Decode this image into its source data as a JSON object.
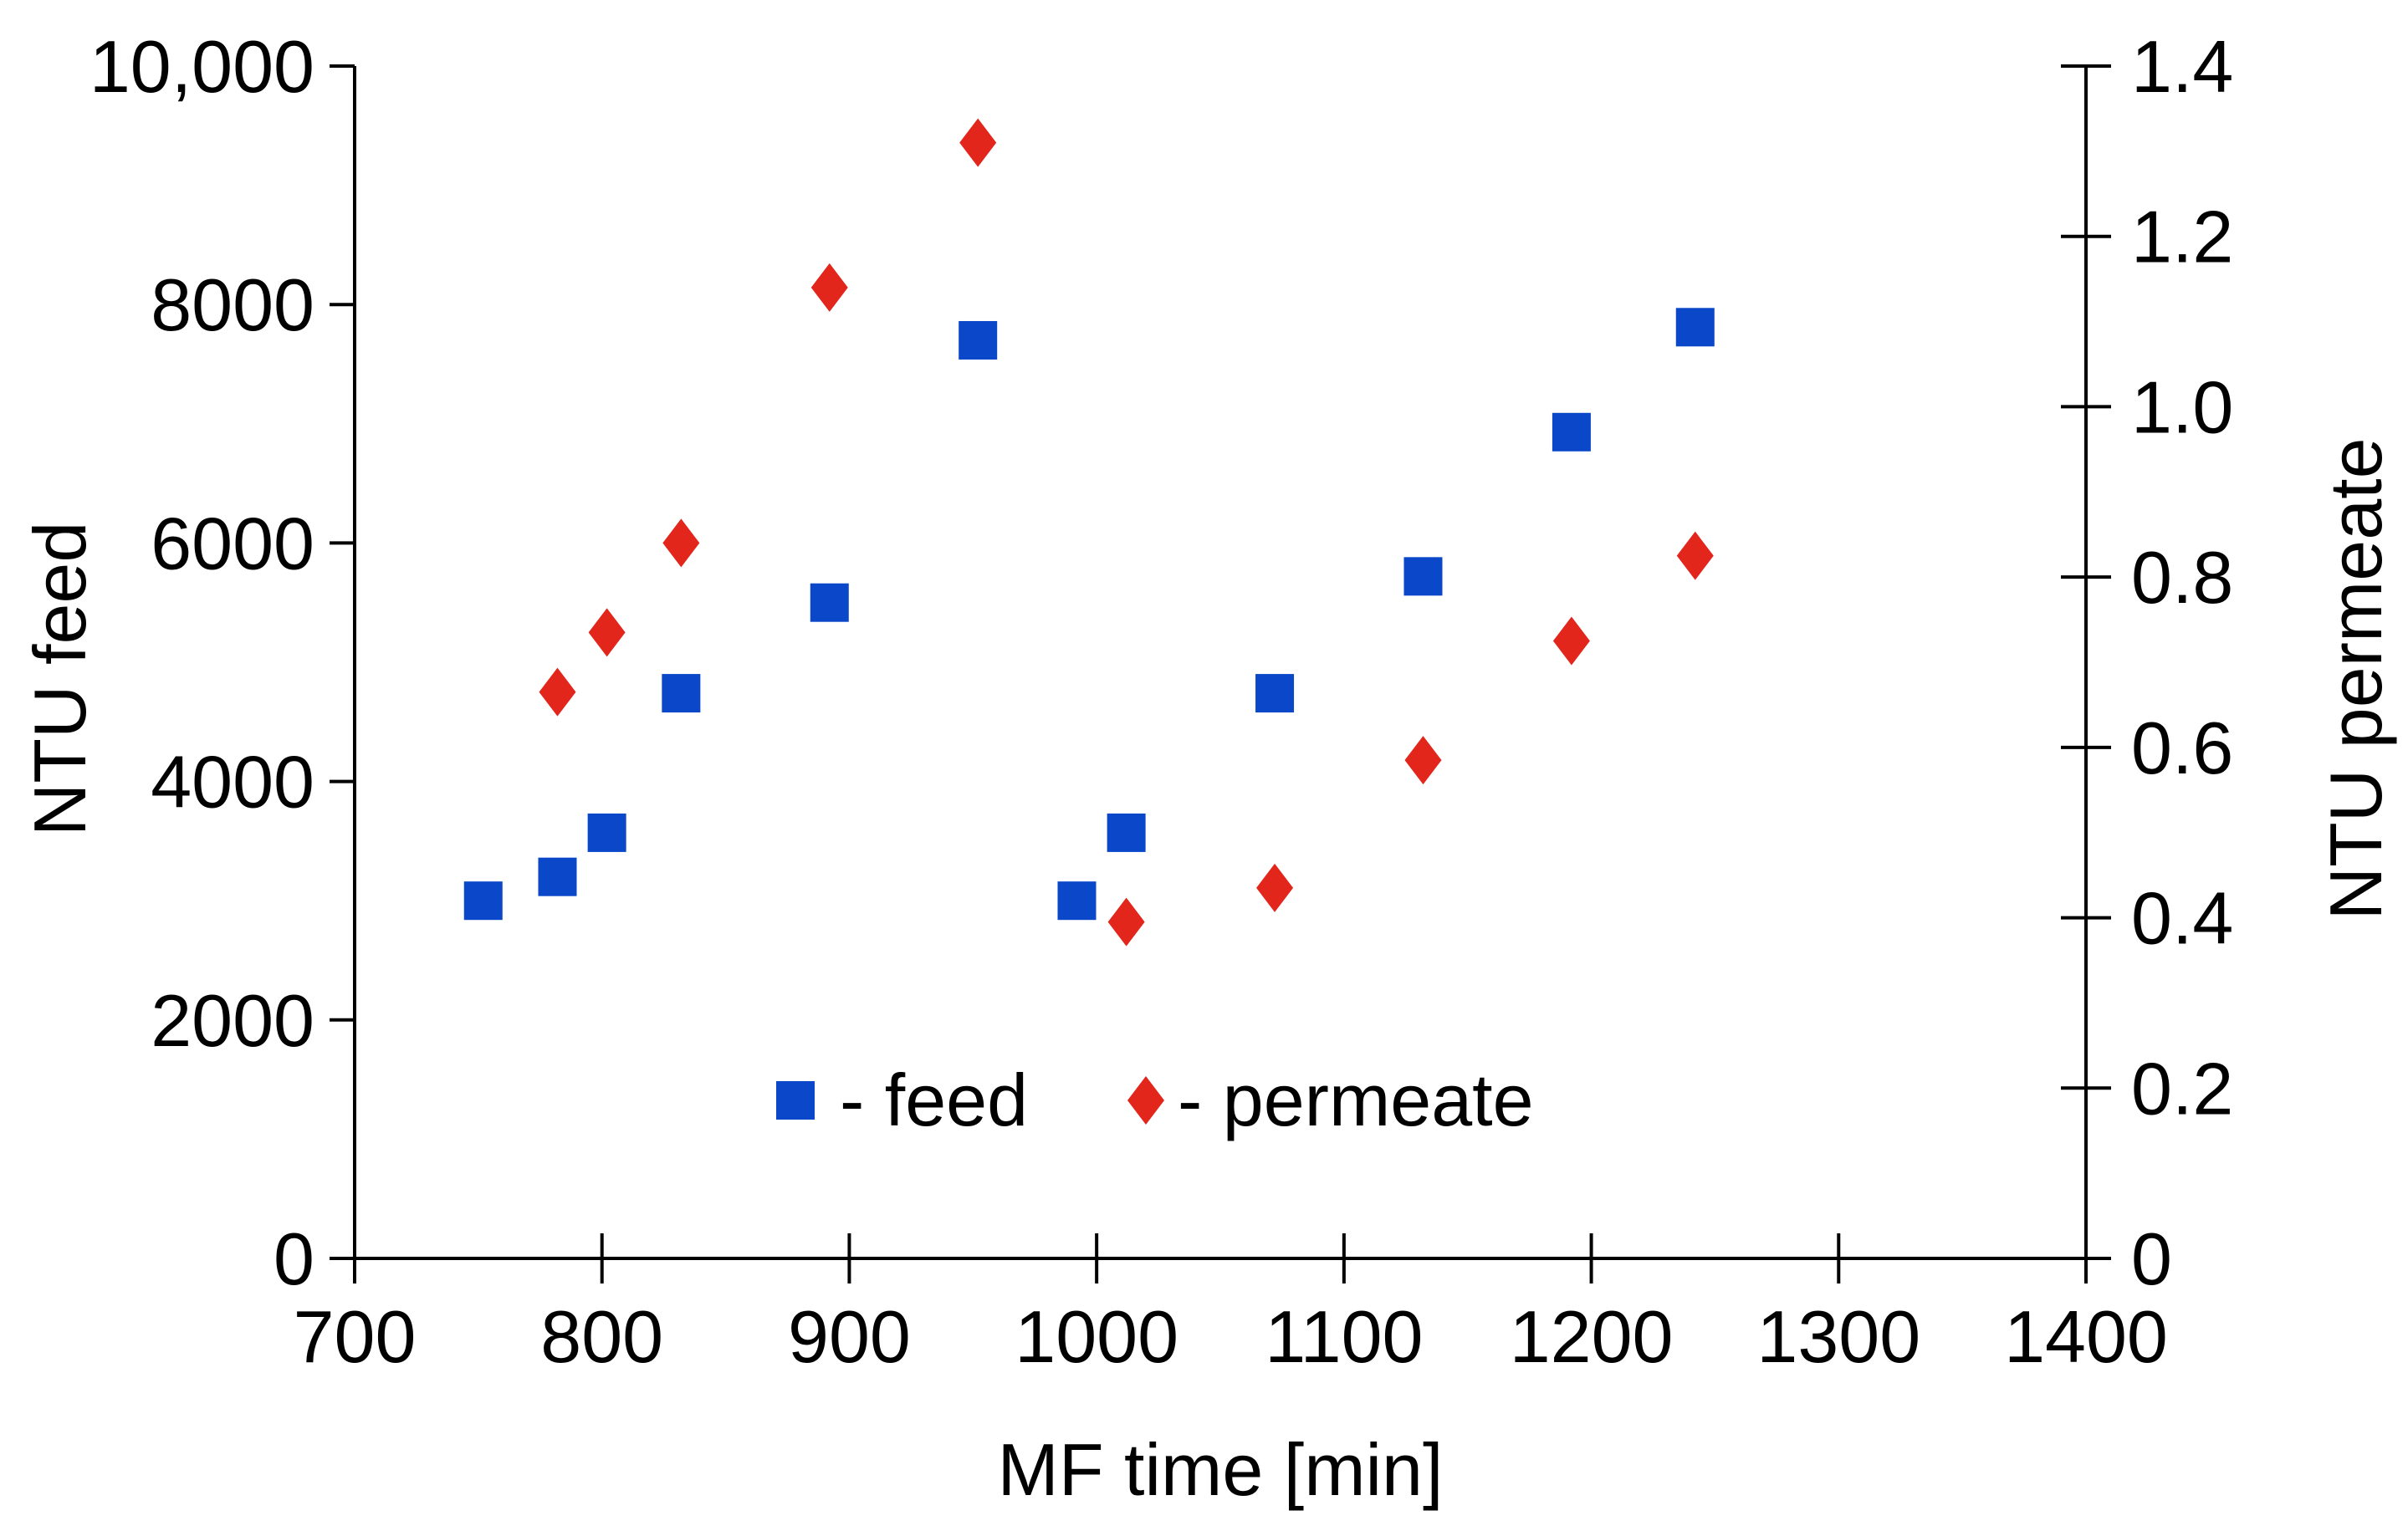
{
  "chart_data": {
    "type": "scatter",
    "title": "",
    "xlabel": "MF time [min]",
    "ylabel": "NTU feed",
    "y2label": "NTU permeate",
    "xlim": [
      700,
      1400
    ],
    "ylim": [
      0,
      10000
    ],
    "y2lim": [
      0,
      1.4
    ],
    "x_ticks": [
      700,
      800,
      900,
      1000,
      1100,
      1200,
      1300,
      1400
    ],
    "x_tick_labels": [
      "700",
      "800",
      "900",
      "1000",
      "1100",
      "1200",
      "1300",
      "1400"
    ],
    "y_ticks": [
      0,
      2000,
      4000,
      6000,
      8000,
      10000
    ],
    "y_tick_labels": [
      "0",
      "2000",
      "4000",
      "6000",
      "8000",
      "10,000"
    ],
    "y2_ticks": [
      0,
      0.2,
      0.4,
      0.6,
      0.8,
      1.0,
      1.2,
      1.4
    ],
    "y2_tick_labels": [
      "0",
      "0.2",
      "0.4",
      "0.6",
      "0.8",
      "1.0",
      "1.2",
      "1.4"
    ],
    "grid": false,
    "legend_position": "bottom-center",
    "series": [
      {
        "name": "feed",
        "legend_label": "- feed",
        "marker": "square",
        "color": "#0a47c9",
        "axis": "left",
        "points": [
          {
            "x": 752,
            "y": 3000
          },
          {
            "x": 782,
            "y": 3200
          },
          {
            "x": 802,
            "y": 3570
          },
          {
            "x": 832,
            "y": 4740
          },
          {
            "x": 892,
            "y": 5500
          },
          {
            "x": 952,
            "y": 7700
          },
          {
            "x": 992,
            "y": 3000
          },
          {
            "x": 1012,
            "y": 3570
          },
          {
            "x": 1072,
            "y": 4740
          },
          {
            "x": 1132,
            "y": 5720
          },
          {
            "x": 1192,
            "y": 6930
          },
          {
            "x": 1242,
            "y": 7810
          }
        ]
      },
      {
        "name": "permeate",
        "legend_label": "- permeate",
        "marker": "diamond",
        "color": "#e3261c",
        "axis": "right",
        "points": [
          {
            "x": 782,
            "y": 0.665
          },
          {
            "x": 802,
            "y": 0.735
          },
          {
            "x": 832,
            "y": 0.84
          },
          {
            "x": 892,
            "y": 1.14
          },
          {
            "x": 952,
            "y": 1.31
          },
          {
            "x": 1012,
            "y": 0.395
          },
          {
            "x": 1072,
            "y": 0.435
          },
          {
            "x": 1132,
            "y": 0.585
          },
          {
            "x": 1192,
            "y": 0.725
          },
          {
            "x": 1242,
            "y": 0.825
          }
        ]
      }
    ]
  }
}
